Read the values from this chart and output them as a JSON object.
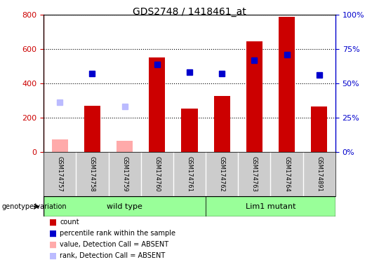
{
  "title": "GDS2748 / 1418461_at",
  "samples": [
    "GSM174757",
    "GSM174758",
    "GSM174759",
    "GSM174760",
    "GSM174761",
    "GSM174762",
    "GSM174763",
    "GSM174764",
    "GSM174891"
  ],
  "count_values": [
    null,
    270,
    null,
    550,
    255,
    325,
    645,
    790,
    265
  ],
  "count_absent": [
    75,
    null,
    65,
    null,
    null,
    null,
    null,
    null,
    null
  ],
  "rank_present": [
    null,
    57,
    null,
    64,
    58,
    57,
    67,
    71,
    56
  ],
  "rank_absent": [
    36,
    null,
    33,
    null,
    null,
    null,
    null,
    null,
    null
  ],
  "ylim_left": [
    0,
    800
  ],
  "ylim_right": [
    0,
    100
  ],
  "yticks_left": [
    0,
    200,
    400,
    600,
    800
  ],
  "yticks_right": [
    0,
    25,
    50,
    75,
    100
  ],
  "left_color": "#cc0000",
  "right_color": "#0000cc",
  "absent_bar_color": "#ffaaaa",
  "absent_rank_color": "#bbbbff",
  "wt_count": 5,
  "lm_count": 4,
  "group_row_label": "genotype/variation",
  "legend_items": [
    {
      "color": "#cc0000",
      "label": "count"
    },
    {
      "color": "#0000cc",
      "label": "percentile rank within the sample"
    },
    {
      "color": "#ffaaaa",
      "label": "value, Detection Call = ABSENT"
    },
    {
      "color": "#bbbbff",
      "label": "rank, Detection Call = ABSENT"
    }
  ],
  "bar_width": 0.5,
  "marker_size": 6,
  "green_color": "#99ff99",
  "label_bg": "#cccccc",
  "plot_bg": "#ffffff"
}
